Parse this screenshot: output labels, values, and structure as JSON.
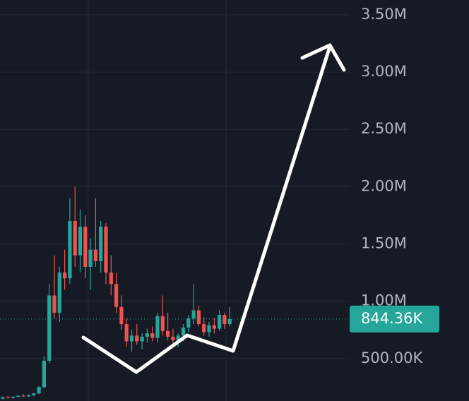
{
  "chart_data": {
    "type": "candlestick",
    "open": [
      150000,
      160000,
      155000,
      165000,
      175000,
      170000,
      180000,
      195000,
      250000,
      480000,
      1050000,
      900000,
      1250000,
      1200000,
      1700000,
      1400000,
      1650000,
      1300000,
      1450000,
      1350000,
      1650000,
      1250000,
      1150000,
      950000,
      800000,
      650000,
      700000,
      650000,
      690000,
      720000,
      680000,
      870000,
      740000,
      690000,
      660000,
      700000,
      770000,
      850000,
      920000,
      800000,
      730000,
      790000,
      760000,
      880000,
      800000
    ],
    "high": [
      170000,
      175000,
      170000,
      180000,
      190000,
      185000,
      200000,
      260000,
      520000,
      1150000,
      1400000,
      1300000,
      1450000,
      1900000,
      2000000,
      1800000,
      1750000,
      1550000,
      1900000,
      1700000,
      1680000,
      1400000,
      1250000,
      1050000,
      850000,
      750000,
      800000,
      720000,
      760000,
      780000,
      900000,
      1050000,
      900000,
      760000,
      720000,
      800000,
      880000,
      1150000,
      960000,
      860000,
      820000,
      850000,
      920000,
      900000,
      950000
    ],
    "low": [
      140000,
      150000,
      150000,
      160000,
      165000,
      160000,
      170000,
      190000,
      240000,
      460000,
      850000,
      820000,
      1100000,
      1150000,
      1300000,
      1250000,
      1200000,
      1100000,
      1300000,
      1250000,
      1150000,
      1050000,
      900000,
      750000,
      600000,
      560000,
      620000,
      580000,
      640000,
      650000,
      640000,
      700000,
      660000,
      630000,
      600000,
      650000,
      730000,
      800000,
      780000,
      700000,
      690000,
      720000,
      740000,
      760000,
      780000
    ],
    "close": [
      160000,
      155000,
      165000,
      175000,
      170000,
      180000,
      195000,
      250000,
      480000,
      1050000,
      900000,
      1250000,
      1200000,
      1700000,
      1400000,
      1650000,
      1300000,
      1450000,
      1350000,
      1650000,
      1250000,
      1150000,
      950000,
      800000,
      650000,
      700000,
      650000,
      690000,
      720000,
      680000,
      870000,
      740000,
      690000,
      660000,
      700000,
      770000,
      850000,
      920000,
      800000,
      730000,
      790000,
      760000,
      880000,
      800000,
      844360
    ],
    "up_color": "#26a69a",
    "down_color": "#ef5350",
    "ylim": [
      129000,
      3629000
    ],
    "yticks": [
      {
        "value": 500000,
        "label": "500.00K"
      },
      {
        "value": 1000000,
        "label": "1.00M"
      },
      {
        "value": 1500000,
        "label": "1.50M"
      },
      {
        "value": 2000000,
        "label": "2.00M"
      },
      {
        "value": 2500000,
        "label": "2.50M"
      },
      {
        "value": 3000000,
        "label": "3.00M"
      },
      {
        "value": 3500000,
        "label": "3.50M"
      }
    ],
    "grid": true,
    "last_price": 844360,
    "last_price_label": "844.36K"
  }
}
